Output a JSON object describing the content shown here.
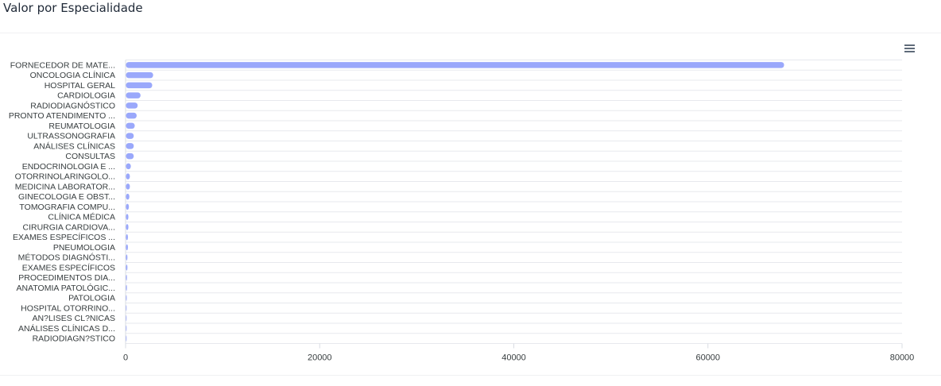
{
  "card": {
    "title": "Valor por Especialidade"
  },
  "toolbar": {
    "menu_icon": "hamburger-menu-icon"
  },
  "colors": {
    "bar": "#9aa8fb",
    "grid": "#e7e9ee",
    "text": "#373d3f"
  },
  "chart_data": {
    "type": "bar",
    "orientation": "horizontal",
    "title": "Valor por Especialidade",
    "categories": [
      "FORNECEDOR DE MATE...",
      "ONCOLOGIA CLÍNICA",
      "HOSPITAL GERAL",
      "CARDIOLOGIA",
      "RADIODIAGNÓSTICO",
      "PRONTO ATENDIMENTO ...",
      "REUMATOLOGIA",
      "ULTRASSONOGRAFIA",
      "ANÁLISES CLÍNICAS",
      "CONSULTAS",
      "ENDOCRINOLOGIA E ...",
      "OTORRINOLARINGOLO...",
      "MEDICINA LABORATOR...",
      "GINECOLOGIA E OBST...",
      "TOMOGRAFIA COMPU...",
      "CLÍNICA MÉDICA",
      "CIRURGIA CARDIOVA...",
      "EXAMES ESPECÍFICOS ...",
      "PNEUMOLOGIA",
      "MÉTODOS DIAGNÓSTI...",
      "EXAMES ESPECÍFICOS",
      "PROCEDIMENTOS DIA...",
      "ANATOMIA PATOLÓGIC...",
      "PATOLOGIA",
      "HOSPITAL OTORRINO...",
      "AN?LISES CL?NICAS",
      "ANÁLISES CLÍNICAS D...",
      "RADIODIAGN?STICO"
    ],
    "values": [
      67800,
      2800,
      2700,
      1500,
      1200,
      1100,
      900,
      800,
      800,
      800,
      500,
      400,
      400,
      350,
      300,
      250,
      250,
      200,
      200,
      150,
      150,
      100,
      100,
      80,
      60,
      50,
      40,
      30
    ],
    "x_ticks": [
      "0",
      "20000",
      "40000",
      "60000",
      "80000"
    ],
    "xlim": [
      0,
      80000
    ],
    "grid": "horizontal lines",
    "legend": "none"
  }
}
